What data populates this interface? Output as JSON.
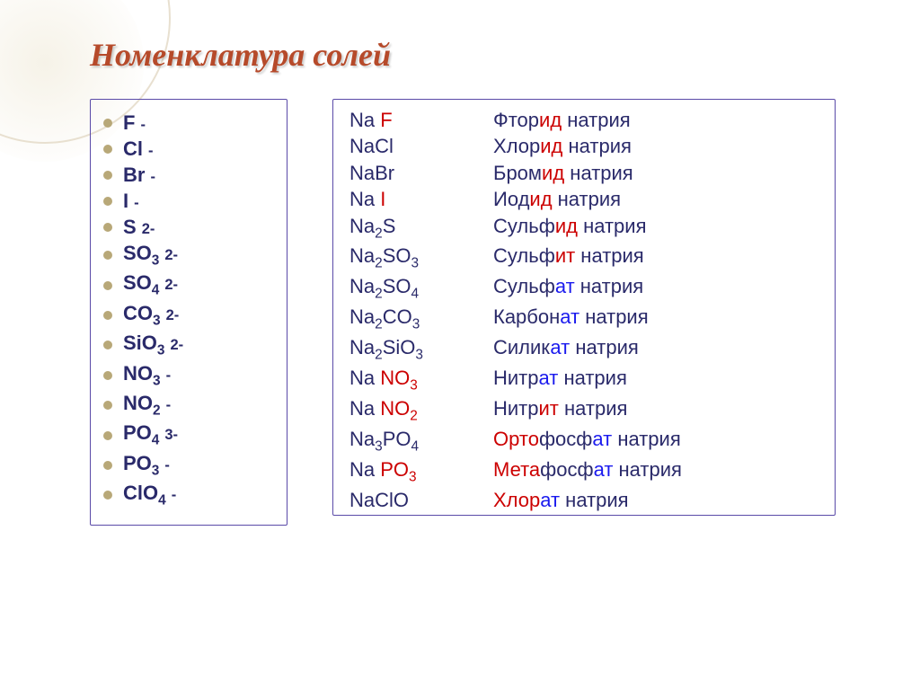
{
  "title": "Номенклатура солей",
  "colors": {
    "title": "#b64a2a",
    "box_border": "#5a4aa8",
    "bullet": "#b8a878",
    "darkblue": "#2a2a6a",
    "red": "#cc0000",
    "blue": "#1a1aee",
    "background": "#ffffff"
  },
  "fontsizes": {
    "title": 36,
    "body": 22
  },
  "anions": [
    {
      "base": "F",
      "sub": "",
      "charge": "-"
    },
    {
      "base": "Cl",
      "sub": "",
      "charge": "-"
    },
    {
      "base": "Br",
      "sub": "",
      "charge": "-"
    },
    {
      "base": "I",
      "sub": "",
      "charge": "-"
    },
    {
      "base": "S",
      "sub": "",
      "charge": "2-"
    },
    {
      "base": "SO",
      "sub": "3",
      "charge": "2-"
    },
    {
      "base": "SO",
      "sub": "4",
      "charge": "2-"
    },
    {
      "base": "CO",
      "sub": "3",
      "charge": "2-"
    },
    {
      "base": "SiO",
      "sub": "3",
      "charge": "2-"
    },
    {
      "base": "NO",
      "sub": "3",
      "charge": "-"
    },
    {
      "base": "NO",
      "sub": "2",
      "charge": "-"
    },
    {
      "base": "PO",
      "sub": "4",
      "charge": "3-"
    },
    {
      "base": "PO",
      "sub": "3",
      "charge": "-"
    },
    {
      "base": "ClO",
      "sub": "4",
      "charge": "-"
    }
  ],
  "salts": [
    {
      "f_pre": "Na ",
      "f_red": "F",
      "f_sub": "",
      "n_pre": "Фтор",
      "n_hi": "ид",
      "n_post": " натрия",
      "hi_color": "red",
      "n_pre_color": "darkblue"
    },
    {
      "f_pre": "NaCl",
      "f_red": "",
      "f_sub": "",
      "n_pre": "Хлор",
      "n_hi": "ид",
      "n_post": " натрия",
      "hi_color": "red",
      "n_pre_color": "darkblue"
    },
    {
      "f_pre": "NaBr",
      "f_red": "",
      "f_sub": "",
      "n_pre": "Бром",
      "n_hi": "ид",
      "n_post": " натрия",
      "hi_color": "red",
      "n_pre_color": "darkblue"
    },
    {
      "f_pre": "Na ",
      "f_red": "I",
      "f_sub": "",
      "n_pre": "Иод",
      "n_hi": "ид",
      "n_post": " натрия",
      "hi_color": "red",
      "n_pre_color": "darkblue"
    },
    {
      "f_pre": "Na",
      "f_red": "",
      "f_sub": "2",
      "f_post": "S",
      "n_pre": "Сульф",
      "n_hi": "ид",
      "n_post": " натрия",
      "hi_color": "red",
      "n_pre_color": "darkblue"
    },
    {
      "f_pre": "Na",
      "f_red": "",
      "f_sub": "2",
      "f_post": "SO",
      "f_sub2": "3",
      "n_pre": "Сульф",
      "n_hi": "ит",
      "n_post": " натрия",
      "hi_color": "red",
      "n_pre_color": "darkblue"
    },
    {
      "f_pre": "Na",
      "f_red": "",
      "f_sub": "2",
      "f_post": "SO",
      "f_sub2": "4",
      "n_pre": "Сульф",
      "n_hi": "ат",
      "n_post": " натрия",
      "hi_color": "blue",
      "n_pre_color": "darkblue"
    },
    {
      "f_pre": "Na",
      "f_red": "",
      "f_sub": "2",
      "f_post": "CO",
      "f_sub2": "3",
      "n_pre": "Карбон",
      "n_hi": "ат",
      "n_post": " натрия",
      "hi_color": "blue",
      "n_pre_color": "darkblue"
    },
    {
      "f_pre": "Na",
      "f_red": "",
      "f_sub": "2",
      "f_post": "SiO",
      "f_sub2": "3",
      "n_pre": "Силик",
      "n_hi": "ат",
      "n_post": " натрия",
      "hi_color": "blue",
      "n_pre_color": "darkblue"
    },
    {
      "f_pre": "Na ",
      "f_red": "NO",
      "f_sub": "",
      "f_rsub": "3",
      "n_pre": "Нитр",
      "n_hi": "ат",
      "n_post": " натрия",
      "hi_color": "blue",
      "n_pre_color": "darkblue"
    },
    {
      "f_pre": "Na ",
      "f_red": "NO",
      "f_sub": "",
      "f_rsub": "2",
      "n_pre": "Нитр",
      "n_hi": "ит",
      "n_post": " натрия",
      "hi_color": "red",
      "n_pre_color": "darkblue"
    },
    {
      "f_pre": "Na",
      "f_red": "",
      "f_sub": "3",
      "f_post": "PO",
      "f_sub2": "4",
      "n_pre_red": "Орто",
      "n_pre": "фосф",
      "n_hi": "ат",
      "n_post": " натрия",
      "hi_color": "blue",
      "n_pre_color": "darkblue"
    },
    {
      "f_pre": "Na ",
      "f_red": "PO",
      "f_sub": "",
      "f_rsub": "3",
      "n_pre_red": "Мета",
      "n_pre": "фосф",
      "n_hi": "ат",
      "n_post": " натрия",
      "hi_color": "blue",
      "n_pre_color": "darkblue"
    },
    {
      "f_pre": "NaClO",
      "f_red": "",
      "f_sub": "",
      "n_pre_red": "Хлор",
      "n_pre": "",
      "n_hi": "ат",
      "n_post": " натрия",
      "hi_color": "blue",
      "n_pre_color": "darkblue",
      "cut": true
    }
  ]
}
